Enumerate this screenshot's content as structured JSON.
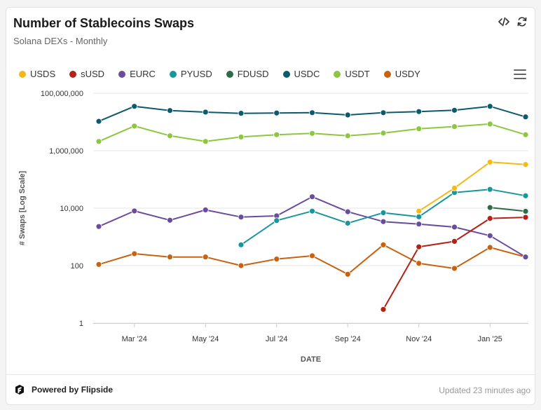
{
  "header": {
    "title": "Number of Stablecoins Swaps",
    "subtitle": "Solana DEXs - Monthly",
    "embed_icon": "code-icon",
    "refresh_icon": "refresh-icon"
  },
  "legend": [
    {
      "name": "USDS",
      "color": "#f5b914"
    },
    {
      "name": "sUSD",
      "color": "#b22216"
    },
    {
      "name": "EURC",
      "color": "#6a4c9c"
    },
    {
      "name": "PYUSD",
      "color": "#17979a"
    },
    {
      "name": "FDUSD",
      "color": "#2f6b46"
    },
    {
      "name": "USDC",
      "color": "#0c5a6e"
    },
    {
      "name": "USDT",
      "color": "#8dc63f"
    },
    {
      "name": "USDY",
      "color": "#c8620f"
    }
  ],
  "chart_data": {
    "type": "line",
    "title": "Number of Stablecoins Swaps",
    "xlabel": "DATE",
    "ylabel": "# Swaps [Log Scale]",
    "yscale": "log",
    "ylim": [
      1,
      100000000
    ],
    "y_ticks": [
      "100,000,000",
      "1,000,000",
      "10,000",
      "100",
      "1"
    ],
    "x": [
      "Feb '24",
      "Mar '24",
      "Apr '24",
      "May '24",
      "Jun '24",
      "Jul '24",
      "Aug '24",
      "Sep '24",
      "Oct '24",
      "Nov '24",
      "Dec '24",
      "Jan '25",
      "Feb '25"
    ],
    "x_tick_labels": [
      "Mar '24",
      "May '24",
      "Jul '24",
      "Sep '24",
      "Nov '24",
      "Jan '25"
    ],
    "series": [
      {
        "name": "USDC",
        "values": [
          10500000,
          35000000,
          25000000,
          22000000,
          20000000,
          20500000,
          21000000,
          17500000,
          21000000,
          23000000,
          25500000,
          35000000,
          15000000
        ]
      },
      {
        "name": "USDT",
        "values": [
          2100000,
          7200000,
          3300000,
          2100000,
          3000000,
          3600000,
          4000000,
          3300000,
          4100000,
          5800000,
          6900000,
          8500000,
          3600000
        ]
      },
      {
        "name": "USDS",
        "values": [
          null,
          null,
          null,
          null,
          null,
          null,
          null,
          null,
          null,
          7900,
          50000,
          400000,
          330000
        ]
      },
      {
        "name": "PYUSD",
        "values": [
          null,
          null,
          null,
          null,
          530,
          3700,
          7900,
          3000,
          6900,
          5000,
          35000,
          45000,
          27000
        ]
      },
      {
        "name": "EURC",
        "values": [
          2300,
          8000,
          3800,
          8700,
          4900,
          5400,
          25000,
          7500,
          3400,
          2800,
          2200,
          1100,
          200
        ]
      },
      {
        "name": "FDUSD",
        "values": [
          null,
          null,
          null,
          null,
          null,
          null,
          null,
          null,
          null,
          null,
          null,
          10500,
          7800
        ]
      },
      {
        "name": "sUSD",
        "values": [
          null,
          null,
          null,
          null,
          null,
          null,
          null,
          null,
          3,
          450,
          700,
          4400,
          4800
        ]
      },
      {
        "name": "USDY",
        "values": [
          110,
          260,
          200,
          200,
          100,
          170,
          220,
          50,
          530,
          120,
          80,
          430,
          200
        ]
      }
    ]
  },
  "footer": {
    "brand": "Powered by Flipside",
    "updated": "Updated 23 minutes ago"
  }
}
